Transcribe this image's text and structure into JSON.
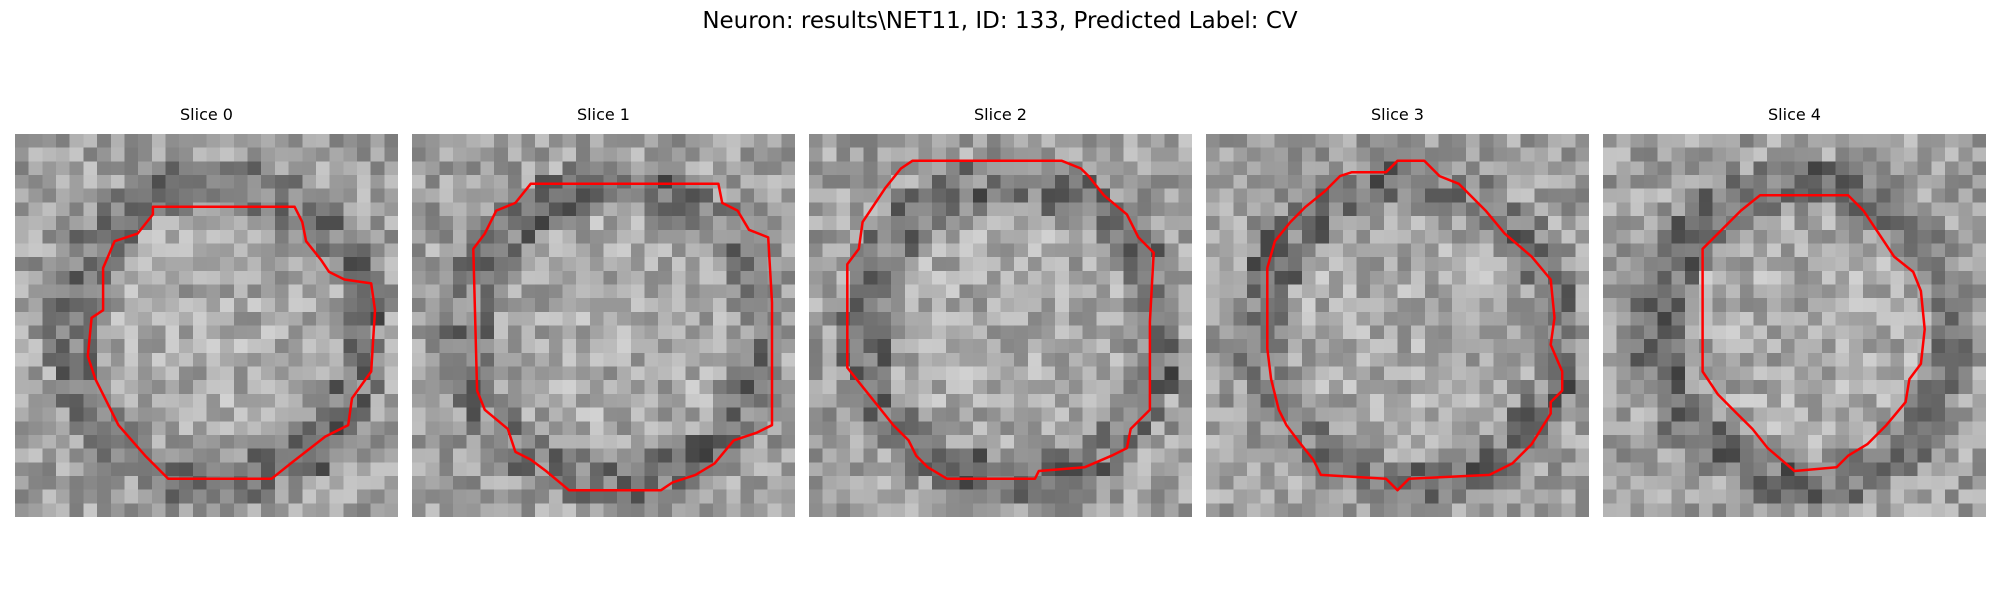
{
  "figure": {
    "title": "Neuron: results\\NET11, ID: 133, Predicted Label: CV",
    "contour_color": "#ff0000",
    "panels": [
      {
        "title": "Slice 0",
        "seed": 11,
        "contour": [
          [
            0.36,
            0.19
          ],
          [
            0.73,
            0.19
          ],
          [
            0.75,
            0.23
          ],
          [
            0.76,
            0.28
          ],
          [
            0.8,
            0.33
          ],
          [
            0.82,
            0.36
          ],
          [
            0.86,
            0.38
          ],
          [
            0.93,
            0.39
          ],
          [
            0.94,
            0.46
          ],
          [
            0.93,
            0.62
          ],
          [
            0.88,
            0.69
          ],
          [
            0.87,
            0.76
          ],
          [
            0.81,
            0.79
          ],
          [
            0.72,
            0.86
          ],
          [
            0.67,
            0.9
          ],
          [
            0.4,
            0.9
          ],
          [
            0.34,
            0.84
          ],
          [
            0.27,
            0.76
          ],
          [
            0.21,
            0.64
          ],
          [
            0.19,
            0.58
          ],
          [
            0.2,
            0.48
          ],
          [
            0.23,
            0.46
          ],
          [
            0.23,
            0.35
          ],
          [
            0.26,
            0.28
          ],
          [
            0.32,
            0.26
          ],
          [
            0.36,
            0.21
          ]
        ]
      },
      {
        "title": "Slice 1",
        "seed": 23,
        "contour": [
          [
            0.31,
            0.13
          ],
          [
            0.8,
            0.13
          ],
          [
            0.81,
            0.18
          ],
          [
            0.85,
            0.2
          ],
          [
            0.88,
            0.25
          ],
          [
            0.93,
            0.27
          ],
          [
            0.94,
            0.44
          ],
          [
            0.94,
            0.76
          ],
          [
            0.9,
            0.78
          ],
          [
            0.84,
            0.8
          ],
          [
            0.79,
            0.86
          ],
          [
            0.74,
            0.89
          ],
          [
            0.68,
            0.91
          ],
          [
            0.65,
            0.93
          ],
          [
            0.41,
            0.93
          ],
          [
            0.35,
            0.88
          ],
          [
            0.31,
            0.85
          ],
          [
            0.27,
            0.83
          ],
          [
            0.25,
            0.77
          ],
          [
            0.19,
            0.72
          ],
          [
            0.17,
            0.67
          ],
          [
            0.16,
            0.3
          ],
          [
            0.19,
            0.26
          ],
          [
            0.22,
            0.2
          ],
          [
            0.27,
            0.18
          ],
          [
            0.31,
            0.13
          ]
        ]
      },
      {
        "title": "Slice 2",
        "seed": 37,
        "contour": [
          [
            0.27,
            0.07
          ],
          [
            0.66,
            0.07
          ],
          [
            0.71,
            0.09
          ],
          [
            0.73,
            0.11
          ],
          [
            0.77,
            0.16
          ],
          [
            0.83,
            0.21
          ],
          [
            0.86,
            0.27
          ],
          [
            0.9,
            0.31
          ],
          [
            0.89,
            0.49
          ],
          [
            0.89,
            0.72
          ],
          [
            0.84,
            0.77
          ],
          [
            0.83,
            0.82
          ],
          [
            0.79,
            0.84
          ],
          [
            0.72,
            0.87
          ],
          [
            0.6,
            0.88
          ],
          [
            0.59,
            0.9
          ],
          [
            0.36,
            0.9
          ],
          [
            0.31,
            0.87
          ],
          [
            0.28,
            0.84
          ],
          [
            0.26,
            0.8
          ],
          [
            0.22,
            0.76
          ],
          [
            0.18,
            0.71
          ],
          [
            0.14,
            0.66
          ],
          [
            0.1,
            0.61
          ],
          [
            0.1,
            0.34
          ],
          [
            0.13,
            0.3
          ],
          [
            0.14,
            0.23
          ],
          [
            0.2,
            0.14
          ],
          [
            0.24,
            0.09
          ],
          [
            0.27,
            0.07
          ]
        ]
      },
      {
        "title": "Slice 3",
        "seed": 53,
        "contour": [
          [
            0.38,
            0.1
          ],
          [
            0.47,
            0.1
          ],
          [
            0.5,
            0.07
          ],
          [
            0.57,
            0.07
          ],
          [
            0.61,
            0.11
          ],
          [
            0.66,
            0.13
          ],
          [
            0.73,
            0.2
          ],
          [
            0.78,
            0.26
          ],
          [
            0.85,
            0.32
          ],
          [
            0.9,
            0.38
          ],
          [
            0.91,
            0.48
          ],
          [
            0.9,
            0.55
          ],
          [
            0.93,
            0.62
          ],
          [
            0.93,
            0.67
          ],
          [
            0.9,
            0.7
          ],
          [
            0.9,
            0.73
          ],
          [
            0.85,
            0.81
          ],
          [
            0.8,
            0.86
          ],
          [
            0.74,
            0.89
          ],
          [
            0.53,
            0.9
          ],
          [
            0.5,
            0.93
          ],
          [
            0.47,
            0.9
          ],
          [
            0.3,
            0.89
          ],
          [
            0.28,
            0.85
          ],
          [
            0.24,
            0.8
          ],
          [
            0.21,
            0.76
          ],
          [
            0.19,
            0.72
          ],
          [
            0.17,
            0.64
          ],
          [
            0.16,
            0.56
          ],
          [
            0.16,
            0.35
          ],
          [
            0.18,
            0.28
          ],
          [
            0.22,
            0.23
          ],
          [
            0.26,
            0.19
          ],
          [
            0.31,
            0.15
          ],
          [
            0.35,
            0.11
          ],
          [
            0.38,
            0.1
          ]
        ]
      },
      {
        "title": "Slice 4",
        "seed": 71,
        "contour": [
          [
            0.41,
            0.16
          ],
          [
            0.64,
            0.16
          ],
          [
            0.68,
            0.2
          ],
          [
            0.72,
            0.26
          ],
          [
            0.76,
            0.32
          ],
          [
            0.81,
            0.36
          ],
          [
            0.83,
            0.41
          ],
          [
            0.84,
            0.51
          ],
          [
            0.83,
            0.6
          ],
          [
            0.8,
            0.64
          ],
          [
            0.79,
            0.7
          ],
          [
            0.74,
            0.76
          ],
          [
            0.69,
            0.81
          ],
          [
            0.64,
            0.84
          ],
          [
            0.61,
            0.87
          ],
          [
            0.5,
            0.88
          ],
          [
            0.43,
            0.82
          ],
          [
            0.39,
            0.77
          ],
          [
            0.35,
            0.73
          ],
          [
            0.3,
            0.68
          ],
          [
            0.26,
            0.62
          ],
          [
            0.26,
            0.3
          ],
          [
            0.3,
            0.26
          ],
          [
            0.36,
            0.2
          ],
          [
            0.41,
            0.16
          ]
        ]
      }
    ]
  }
}
